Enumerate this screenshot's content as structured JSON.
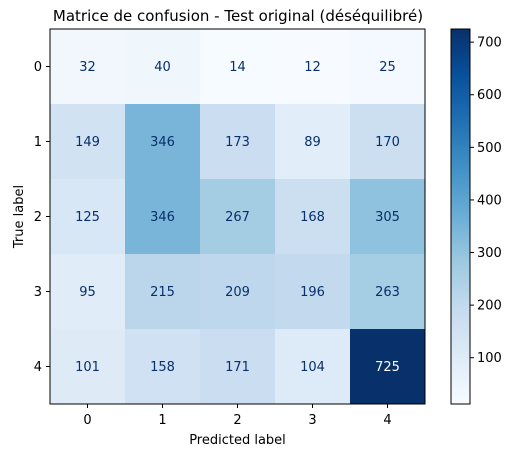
{
  "chart_data": {
    "type": "heatmap",
    "title": "Matrice de confusion - Test original (déséquilibré)",
    "xlabel": "Predicted label",
    "ylabel": "True label",
    "x_categories": [
      "0",
      "1",
      "2",
      "3",
      "4"
    ],
    "y_categories": [
      "0",
      "1",
      "2",
      "3",
      "4"
    ],
    "values": [
      [
        32,
        40,
        14,
        12,
        25
      ],
      [
        149,
        346,
        173,
        89,
        170
      ],
      [
        125,
        346,
        267,
        168,
        305
      ],
      [
        95,
        215,
        209,
        196,
        263
      ],
      [
        101,
        158,
        171,
        104,
        725
      ]
    ],
    "colormap": "Blues",
    "color_range": [
      12,
      725
    ],
    "colorbar_ticks": [
      "100",
      "200",
      "300",
      "400",
      "500",
      "600",
      "700"
    ],
    "grid": false
  }
}
